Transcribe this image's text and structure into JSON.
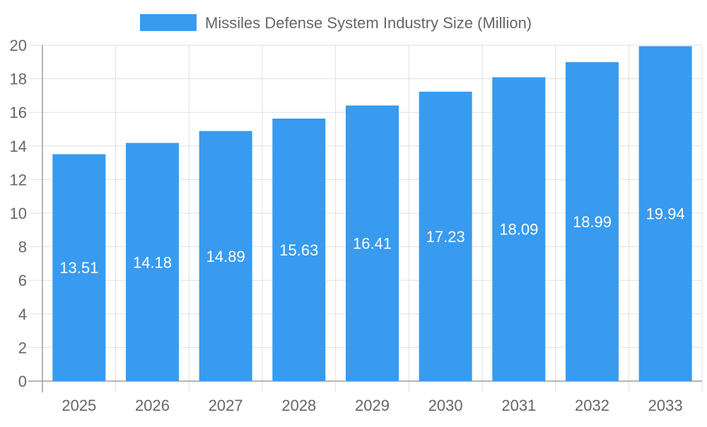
{
  "chart_data": {
    "type": "bar",
    "categories": [
      "2025",
      "2026",
      "2027",
      "2028",
      "2029",
      "2030",
      "2031",
      "2032",
      "2033"
    ],
    "series": [
      {
        "name": "Missiles Defense System Industry Size (Million)",
        "values": [
          13.51,
          14.18,
          14.89,
          15.63,
          16.41,
          17.23,
          18.09,
          18.99,
          19.94
        ]
      }
    ],
    "data_labels": [
      "13.51",
      "14.18",
      "14.89",
      "15.63",
      "16.41",
      "17.23",
      "18.09",
      "18.99",
      "19.94"
    ],
    "ylim": [
      0,
      20
    ],
    "yticks": [
      "0",
      "2",
      "4",
      "6",
      "8",
      "10",
      "12",
      "14",
      "16",
      "18",
      "20"
    ],
    "grid": true,
    "legend_position": "top",
    "colors": {
      "bar": "#389BEF",
      "grid": "#e0e0e0",
      "axis": "#9e9e9e",
      "text": "#666666"
    }
  }
}
